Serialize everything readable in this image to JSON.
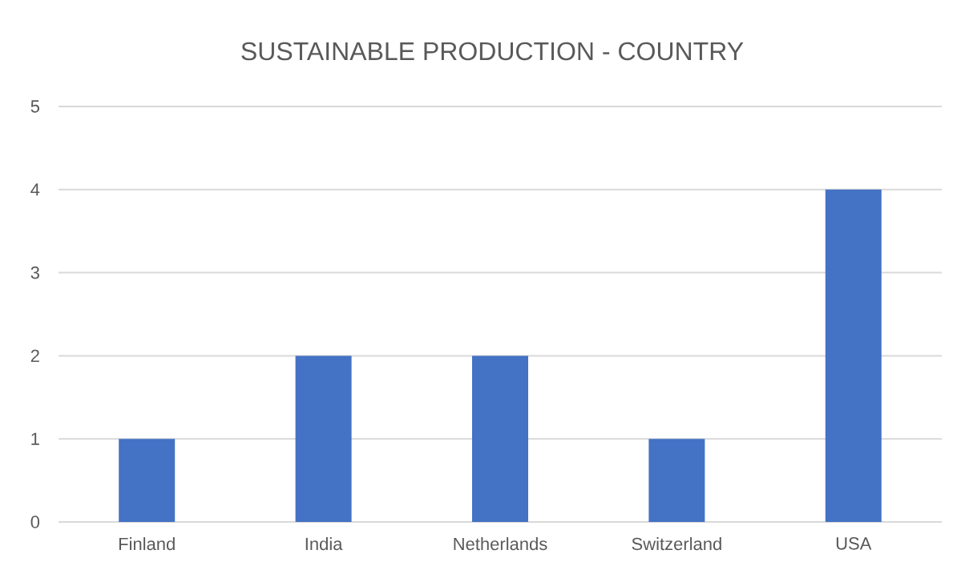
{
  "chart_data": {
    "type": "bar",
    "title": "SUSTAINABLE PRODUCTION - COUNTRY",
    "categories": [
      "Finland",
      "India",
      "Netherlands",
      "Switzerland",
      "USA"
    ],
    "values": [
      1,
      2,
      2,
      1,
      4
    ],
    "color": "#4472c4",
    "ylim": [
      0,
      5
    ],
    "yticks": [
      0,
      1,
      2,
      3,
      4,
      5
    ],
    "grid": "y"
  }
}
